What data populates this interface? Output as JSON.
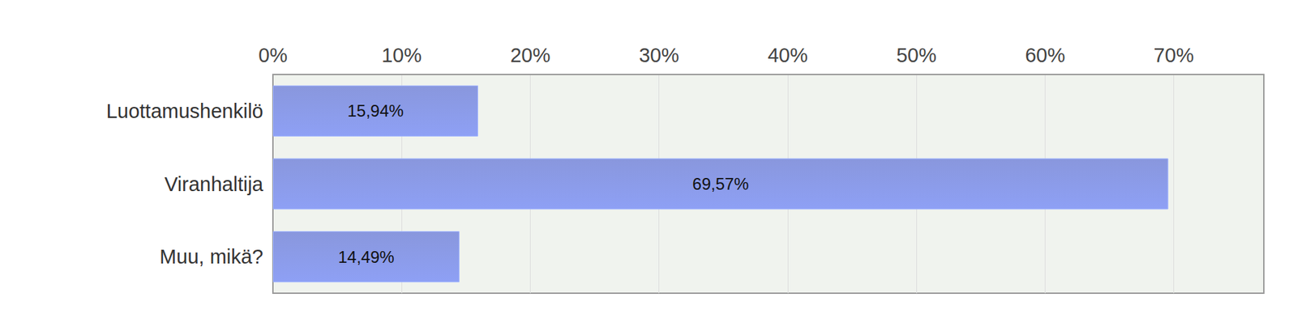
{
  "chart_data": {
    "type": "bar",
    "orientation": "horizontal",
    "categories": [
      "Luottamushenkilö",
      "Viranhaltija",
      "Muu, mikä?"
    ],
    "values": [
      15.94,
      69.57,
      14.49
    ],
    "value_labels": [
      "15,94%",
      "69,57%",
      "14,49%"
    ],
    "color": "#7f8fdb",
    "xlim": [
      0,
      77
    ],
    "xticks": [
      {
        "value": 0,
        "label": "0%"
      },
      {
        "value": 10,
        "label": "10%"
      },
      {
        "value": 20,
        "label": "20%"
      },
      {
        "value": 30,
        "label": "30%"
      },
      {
        "value": 40,
        "label": "40%"
      },
      {
        "value": 50,
        "label": "50%"
      },
      {
        "value": 60,
        "label": "60%"
      },
      {
        "value": 70,
        "label": "70%"
      }
    ],
    "grid": true,
    "data_labels": true
  }
}
